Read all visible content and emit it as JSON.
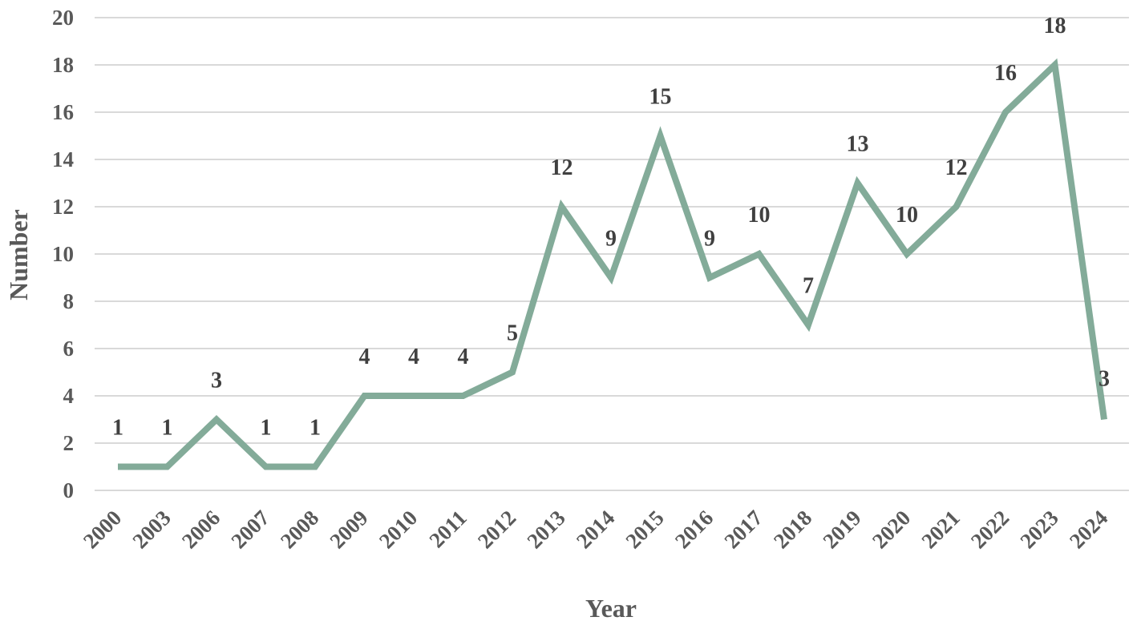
{
  "chart_data": {
    "type": "line",
    "title": "",
    "xlabel": "Year",
    "ylabel": "Number",
    "categories": [
      "2000",
      "2003",
      "2006",
      "2007",
      "2008",
      "2009",
      "2010",
      "2011",
      "2012",
      "2013",
      "2014",
      "2015",
      "2016",
      "2017",
      "2018",
      "2019",
      "2020",
      "2021",
      "2022",
      "2023",
      "2024"
    ],
    "series": [
      {
        "values": [
          1,
          1,
          3,
          1,
          1,
          4,
          4,
          4,
          5,
          12,
          9,
          15,
          9,
          10,
          7,
          13,
          10,
          12,
          16,
          18,
          3
        ]
      }
    ],
    "data_labels": [
      "1",
      "1",
      "3",
      "1",
      "1",
      "4",
      "4",
      "4",
      "5",
      "12",
      "9",
      "15",
      "9",
      "10",
      "7",
      "13",
      "10",
      "12",
      "16",
      "18",
      "3"
    ],
    "yticks": [
      "0",
      "2",
      "4",
      "6",
      "8",
      "10",
      "12",
      "14",
      "16",
      "18",
      "20"
    ],
    "ylim": [
      0,
      20
    ],
    "grid": true,
    "legend": "none",
    "line_color": "#83ab99",
    "grid_color": "#d9d9d9",
    "text_color": "#595959"
  }
}
